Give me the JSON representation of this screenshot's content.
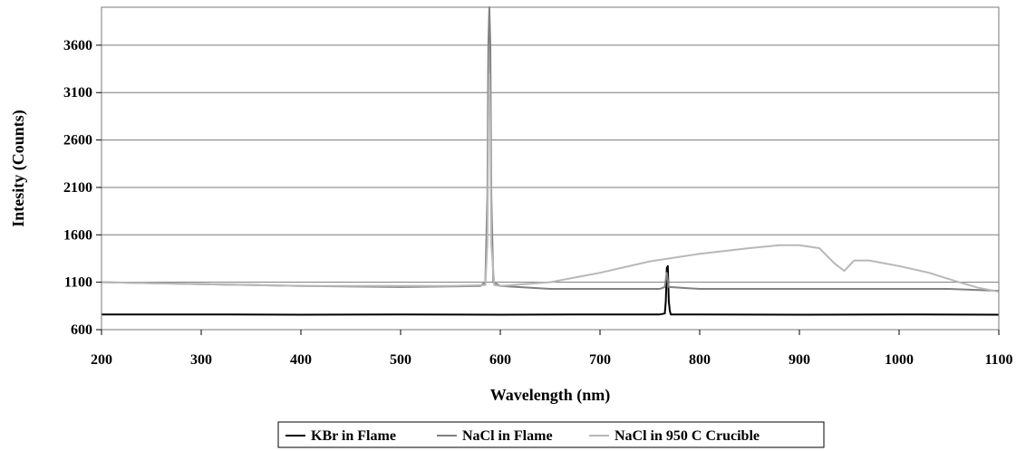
{
  "chart_data": {
    "type": "line",
    "title": "",
    "xlabel": "Wavelength (nm)",
    "ylabel": "Intesity (Counts)",
    "xlim": [
      200,
      1100
    ],
    "ylim": [
      600,
      4000
    ],
    "x_ticks": [
      200,
      300,
      400,
      500,
      600,
      700,
      800,
      900,
      1000,
      1100
    ],
    "y_ticks": [
      600,
      1100,
      1600,
      2100,
      2600,
      3100,
      3600
    ],
    "grid": "horizontal",
    "legend_position": "bottom",
    "series": [
      {
        "name": "KBr in Flame",
        "color": "#000000",
        "points": [
          [
            200,
            760
          ],
          [
            300,
            760
          ],
          [
            400,
            758
          ],
          [
            500,
            760
          ],
          [
            600,
            758
          ],
          [
            700,
            760
          ],
          [
            760,
            760
          ],
          [
            765,
            770
          ],
          [
            766,
            900
          ],
          [
            767,
            1250
          ],
          [
            768,
            1270
          ],
          [
            769,
            900
          ],
          [
            770,
            800
          ],
          [
            771,
            760
          ],
          [
            800,
            760
          ],
          [
            900,
            758
          ],
          [
            1000,
            760
          ],
          [
            1100,
            758
          ]
        ]
      },
      {
        "name": "NaCl in Flame",
        "color": "#808080",
        "points": [
          [
            200,
            1100
          ],
          [
            300,
            1080
          ],
          [
            400,
            1060
          ],
          [
            500,
            1050
          ],
          [
            580,
            1060
          ],
          [
            585,
            1100
          ],
          [
            587,
            2000
          ],
          [
            588,
            3600
          ],
          [
            589,
            4000
          ],
          [
            590,
            3600
          ],
          [
            591,
            2000
          ],
          [
            593,
            1100
          ],
          [
            600,
            1060
          ],
          [
            650,
            1030
          ],
          [
            700,
            1030
          ],
          [
            760,
            1030
          ],
          [
            765,
            1050
          ],
          [
            767,
            1200
          ],
          [
            769,
            1050
          ],
          [
            800,
            1030
          ],
          [
            900,
            1030
          ],
          [
            1000,
            1030
          ],
          [
            1050,
            1030
          ],
          [
            1100,
            1010
          ]
        ]
      },
      {
        "name": "NaCl in 950 C Crucible",
        "color": "#b8b8b8",
        "points": [
          [
            200,
            1100
          ],
          [
            250,
            1090
          ],
          [
            300,
            1080
          ],
          [
            350,
            1070
          ],
          [
            400,
            1060
          ],
          [
            450,
            1060
          ],
          [
            500,
            1060
          ],
          [
            550,
            1060
          ],
          [
            585,
            1070
          ],
          [
            587,
            1500
          ],
          [
            588,
            2800
          ],
          [
            589,
            3300
          ],
          [
            590,
            2800
          ],
          [
            591,
            1500
          ],
          [
            594,
            1070
          ],
          [
            600,
            1060
          ],
          [
            650,
            1100
          ],
          [
            700,
            1200
          ],
          [
            750,
            1320
          ],
          [
            800,
            1400
          ],
          [
            850,
            1460
          ],
          [
            880,
            1490
          ],
          [
            900,
            1490
          ],
          [
            920,
            1460
          ],
          [
            935,
            1300
          ],
          [
            945,
            1220
          ],
          [
            955,
            1330
          ],
          [
            970,
            1330
          ],
          [
            1000,
            1270
          ],
          [
            1030,
            1200
          ],
          [
            1060,
            1100
          ],
          [
            1080,
            1040
          ],
          [
            1100,
            1000
          ]
        ]
      }
    ]
  }
}
